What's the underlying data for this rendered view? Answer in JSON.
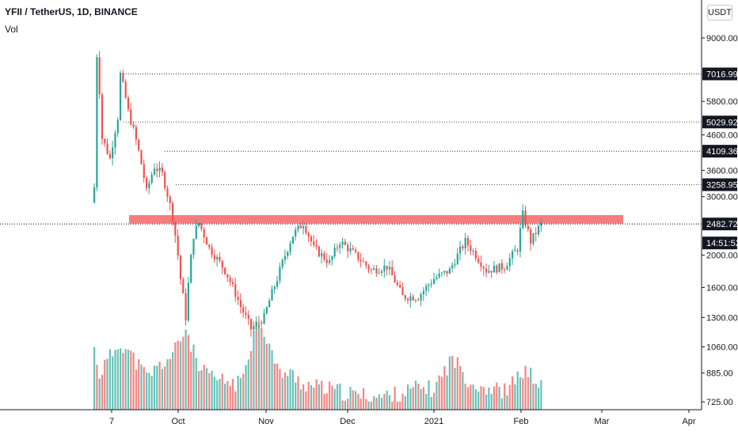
{
  "legend": {
    "title": "YFII / TetherUS, 1D, BINANCE",
    "volume_label": "Vol"
  },
  "currency_button": "USDT",
  "colors": {
    "up": "#26a69a",
    "down": "#ef5350",
    "resistance_zone": "#f77c80",
    "text": "#131722"
  },
  "chart_data": {
    "type": "candlestick",
    "symbol": "YFII/USDT",
    "interval": "1D",
    "exchange": "BINANCE",
    "y_scale": "log",
    "y_ticks": [
      9000,
      7016.99,
      5800,
      5029.92,
      4600,
      4109.36,
      3600,
      3258.95,
      3000,
      2482.72,
      2000,
      1600,
      1300,
      1060,
      885,
      725
    ],
    "x_ticks": [
      "7",
      "Oct",
      "Nov",
      "Dec",
      "2021",
      "Feb",
      "Mar",
      "Apr"
    ],
    "horizontal_levels": [
      7016.99,
      5029.92,
      4109.36,
      3258.95,
      2482.72
    ],
    "price_labels": [
      "7016.99",
      "5029.92",
      "4109.36",
      "3258.95",
      "2482.72"
    ],
    "last_price": 2482.72,
    "countdown": "14:51:52",
    "resistance_zone": {
      "low": 2490,
      "high": 2640
    },
    "ohlc_anchor_closes": [
      [
        0,
        3200
      ],
      [
        1,
        8000
      ],
      [
        3,
        4500
      ],
      [
        6,
        3900
      ],
      [
        9,
        5200
      ],
      [
        10,
        7000
      ],
      [
        13,
        5400
      ],
      [
        17,
        4100
      ],
      [
        20,
        3100
      ],
      [
        23,
        3700
      ],
      [
        26,
        3500
      ],
      [
        30,
        2600
      ],
      [
        33,
        1700
      ],
      [
        35,
        1300
      ],
      [
        38,
        2300
      ],
      [
        40,
        2500
      ],
      [
        44,
        2100
      ],
      [
        50,
        1800
      ],
      [
        56,
        1400
      ],
      [
        60,
        1200
      ],
      [
        65,
        1300
      ],
      [
        70,
        1700
      ],
      [
        76,
        2300
      ],
      [
        80,
        2500
      ],
      [
        84,
        2100
      ],
      [
        90,
        1900
      ],
      [
        94,
        2200
      ],
      [
        100,
        2000
      ],
      [
        106,
        1800
      ],
      [
        112,
        1850
      ],
      [
        118,
        1500
      ],
      [
        124,
        1500
      ],
      [
        130,
        1700
      ],
      [
        136,
        1800
      ],
      [
        142,
        2200
      ],
      [
        146,
        2000
      ],
      [
        150,
        1800
      ],
      [
        157,
        1850
      ],
      [
        162,
        2100
      ],
      [
        164,
        2650
      ],
      [
        167,
        2200
      ],
      [
        171,
        2480
      ]
    ],
    "volume_anchor": [
      [
        0,
        1040
      ],
      [
        2,
        880
      ],
      [
        10,
        1100
      ],
      [
        20,
        860
      ],
      [
        30,
        1000
      ],
      [
        35,
        1200
      ],
      [
        40,
        900
      ],
      [
        48,
        840
      ],
      [
        56,
        820
      ],
      [
        63,
        1300
      ],
      [
        70,
        900
      ],
      [
        76,
        870
      ],
      [
        80,
        820
      ],
      [
        90,
        790
      ],
      [
        100,
        760
      ],
      [
        110,
        750
      ],
      [
        118,
        770
      ],
      [
        124,
        800
      ],
      [
        130,
        790
      ],
      [
        137,
        980
      ],
      [
        144,
        830
      ],
      [
        150,
        800
      ],
      [
        158,
        780
      ],
      [
        164,
        900
      ],
      [
        168,
        860
      ],
      [
        171,
        800
      ]
    ]
  }
}
